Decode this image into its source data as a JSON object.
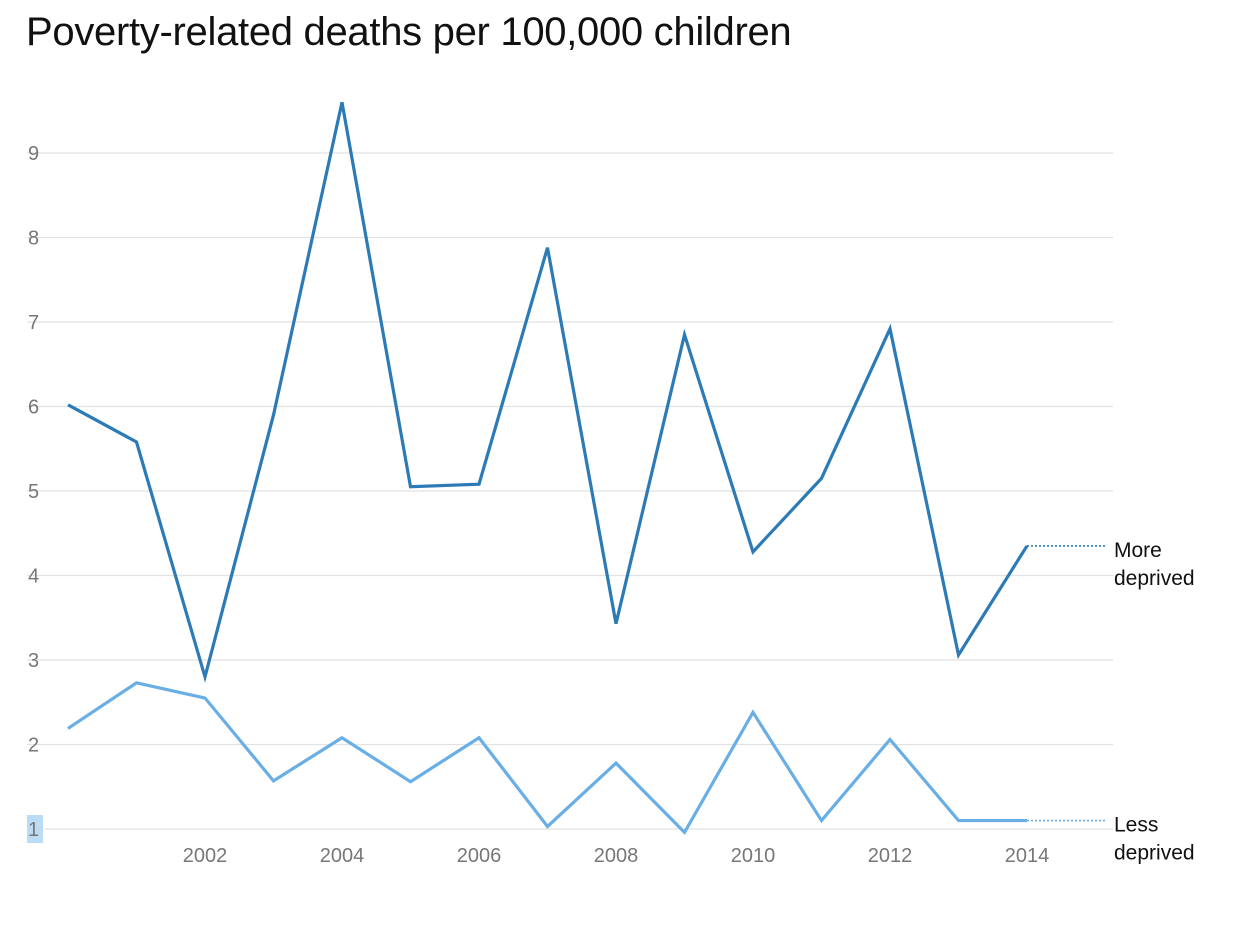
{
  "chart_data": {
    "type": "line",
    "title": "Poverty-related deaths per 100,000 children",
    "xlabel": "",
    "ylabel": "",
    "x": [
      2000,
      2001,
      2002,
      2003,
      2004,
      2005,
      2006,
      2007,
      2008,
      2009,
      2010,
      2011,
      2012,
      2013,
      2014
    ],
    "x_ticks": [
      "2002",
      "2004",
      "2006",
      "2008",
      "2010",
      "2012",
      "2014"
    ],
    "y_ticks": [
      "1",
      "2",
      "3",
      "4",
      "5",
      "6",
      "7",
      "8",
      "9"
    ],
    "xlim": [
      2000,
      2015.3
    ],
    "ylim": [
      1,
      9.9
    ],
    "grid": true,
    "legend": "inline labels at right end of lines",
    "series": [
      {
        "name": "More deprived",
        "label_lines": [
          "More",
          "deprived"
        ],
        "color": "#2c7bb6",
        "values": [
          6.02,
          5.58,
          2.8,
          5.9,
          9.6,
          5.05,
          5.08,
          7.88,
          3.43,
          6.85,
          4.28,
          5.15,
          6.92,
          3.06,
          4.35
        ]
      },
      {
        "name": "Less deprived",
        "label_lines": [
          "Less",
          "deprived"
        ],
        "color": "#6aaee6",
        "values": [
          2.19,
          2.73,
          2.55,
          1.57,
          2.08,
          1.56,
          2.08,
          1.03,
          1.78,
          0.96,
          2.38,
          1.1,
          2.06,
          1.1,
          1.1
        ]
      }
    ]
  }
}
